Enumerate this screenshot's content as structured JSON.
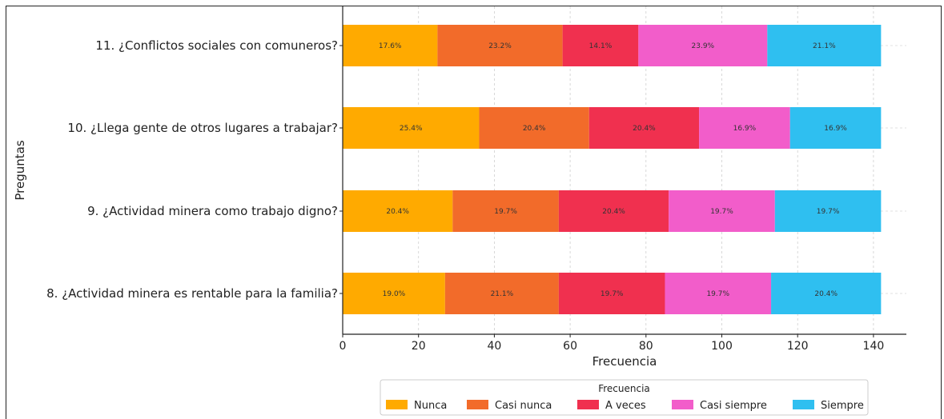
{
  "chart_data": {
    "type": "bar",
    "orientation": "horizontal",
    "stacked": true,
    "categories": [
      "11. ¿Conflictos sociales con comuneros?",
      "10. ¿Llega gente de otros lugares a trabajar?",
      "9. ¿Actividad minera como trabajo digno?",
      "8. ¿Actividad minera es rentable para la familia?"
    ],
    "series": [
      {
        "name": "Nunca",
        "color": "#FFAA00",
        "values": [
          25,
          36,
          29,
          27
        ],
        "labels": [
          "17.6%",
          "25.4%",
          "20.4%",
          "19.0%"
        ]
      },
      {
        "name": "Casi nunca",
        "color": "#F26B2A",
        "values": [
          33,
          29,
          28,
          30
        ],
        "labels": [
          "23.2%",
          "20.4%",
          "19.7%",
          "21.1%"
        ]
      },
      {
        "name": "A veces",
        "color": "#F0304F",
        "values": [
          20,
          29,
          29,
          28
        ],
        "labels": [
          "14.1%",
          "20.4%",
          "20.4%",
          "19.7%"
        ]
      },
      {
        "name": "Casi siempre",
        "color": "#F25DCA",
        "values": [
          34,
          24,
          28,
          28
        ],
        "labels": [
          "23.9%",
          "16.9%",
          "19.7%",
          "19.7%"
        ]
      },
      {
        "name": "Siempre",
        "color": "#2FBFF0",
        "values": [
          30,
          24,
          28,
          29
        ],
        "labels": [
          "21.1%",
          "16.9%",
          "19.7%",
          "20.4%"
        ]
      }
    ],
    "xlabel": "Frecuencia",
    "ylabel": "Preguntas",
    "xlim": [
      0,
      150
    ],
    "xticks": [
      0,
      20,
      40,
      60,
      80,
      100,
      120,
      140
    ],
    "grid": "x dashed",
    "legend": {
      "title": "Frecuencia",
      "placement": "bottom-center"
    }
  }
}
